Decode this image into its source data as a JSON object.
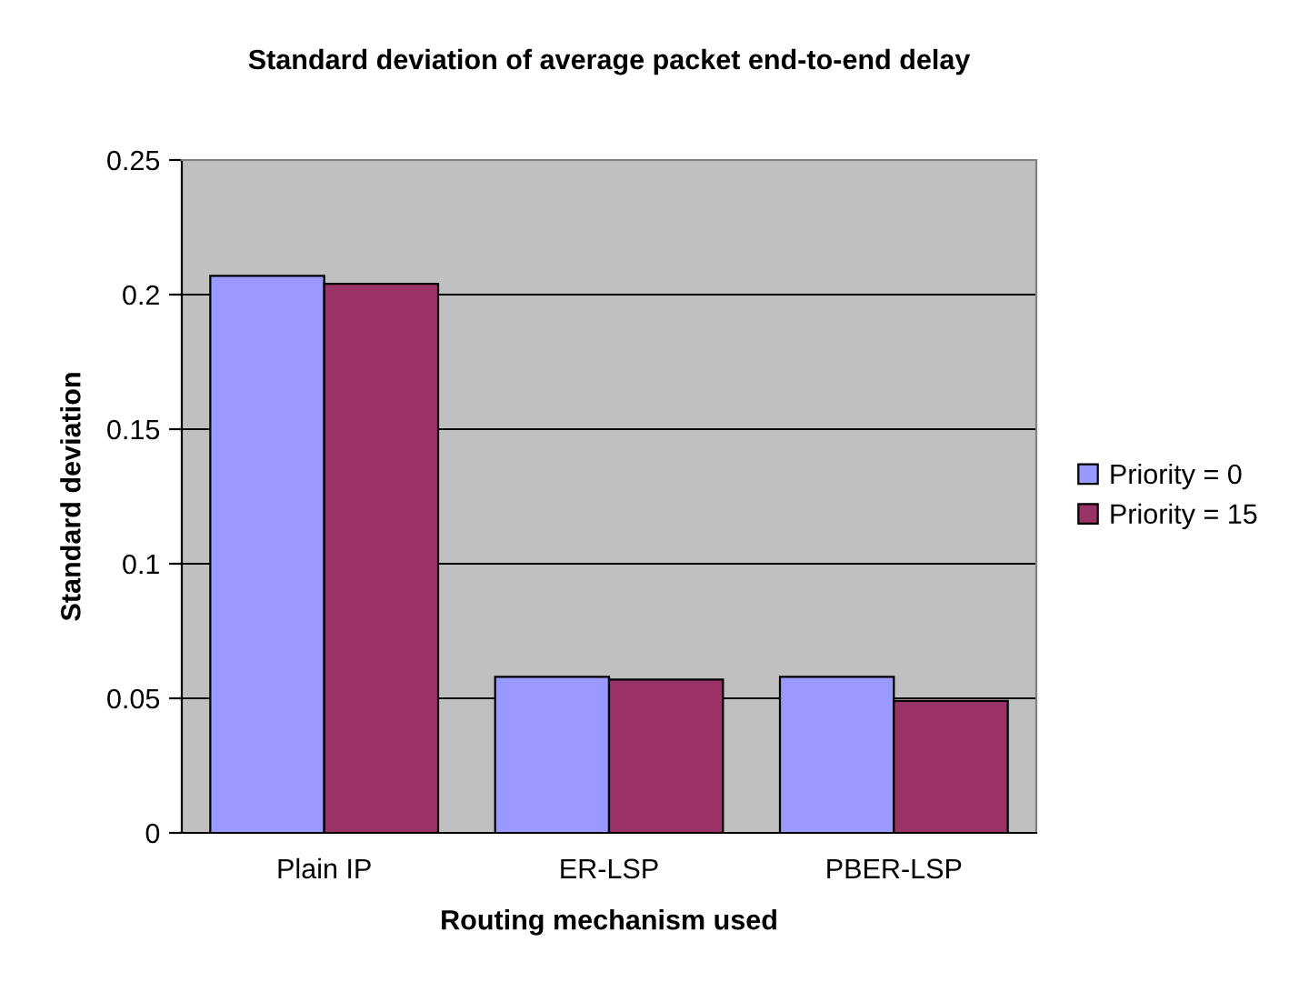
{
  "chart_data": {
    "type": "bar",
    "title": "Standard deviation of average packet end-to-end delay",
    "xlabel": "Routing mechanism used",
    "ylabel": "Standard deviation",
    "categories": [
      "Plain IP",
      "ER-LSP",
      "PBER-LSP"
    ],
    "series": [
      {
        "name": "Priority = 0",
        "color": "#9999ff",
        "values": [
          0.207,
          0.058,
          0.058
        ]
      },
      {
        "name": "Priority = 15",
        "color": "#993366",
        "values": [
          0.204,
          0.057,
          0.049
        ]
      }
    ],
    "ylim": [
      0,
      0.25
    ],
    "yticks": [
      0,
      0.05,
      0.1,
      0.15,
      0.2,
      0.25
    ],
    "grid": "y",
    "legend": "right"
  }
}
